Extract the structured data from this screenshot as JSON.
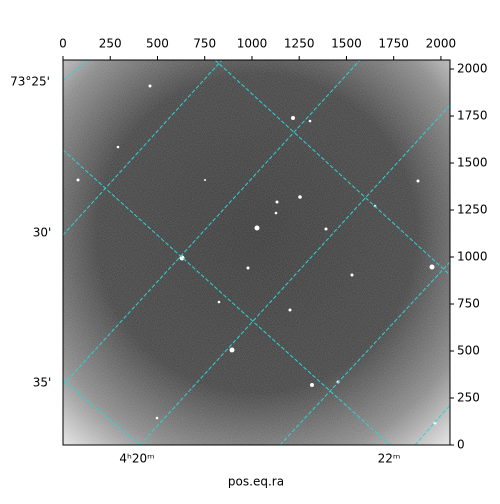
{
  "chart_data": {
    "type": "image",
    "xlabel": "pos.eq.ra",
    "ra_labels": [
      "4ʰ20ᵐ",
      "22ᵐ"
    ],
    "dec_labels": [
      "73°25'",
      "30'",
      "35'"
    ],
    "xlim": [
      0,
      2048
    ],
    "ylim": [
      0,
      2048
    ],
    "xticks": [
      0,
      250,
      500,
      750,
      1000,
      1250,
      1500,
      1750,
      2000
    ],
    "yticks": [
      0,
      250,
      500,
      750,
      1000,
      1250,
      1500,
      1750,
      2000
    ]
  }
}
